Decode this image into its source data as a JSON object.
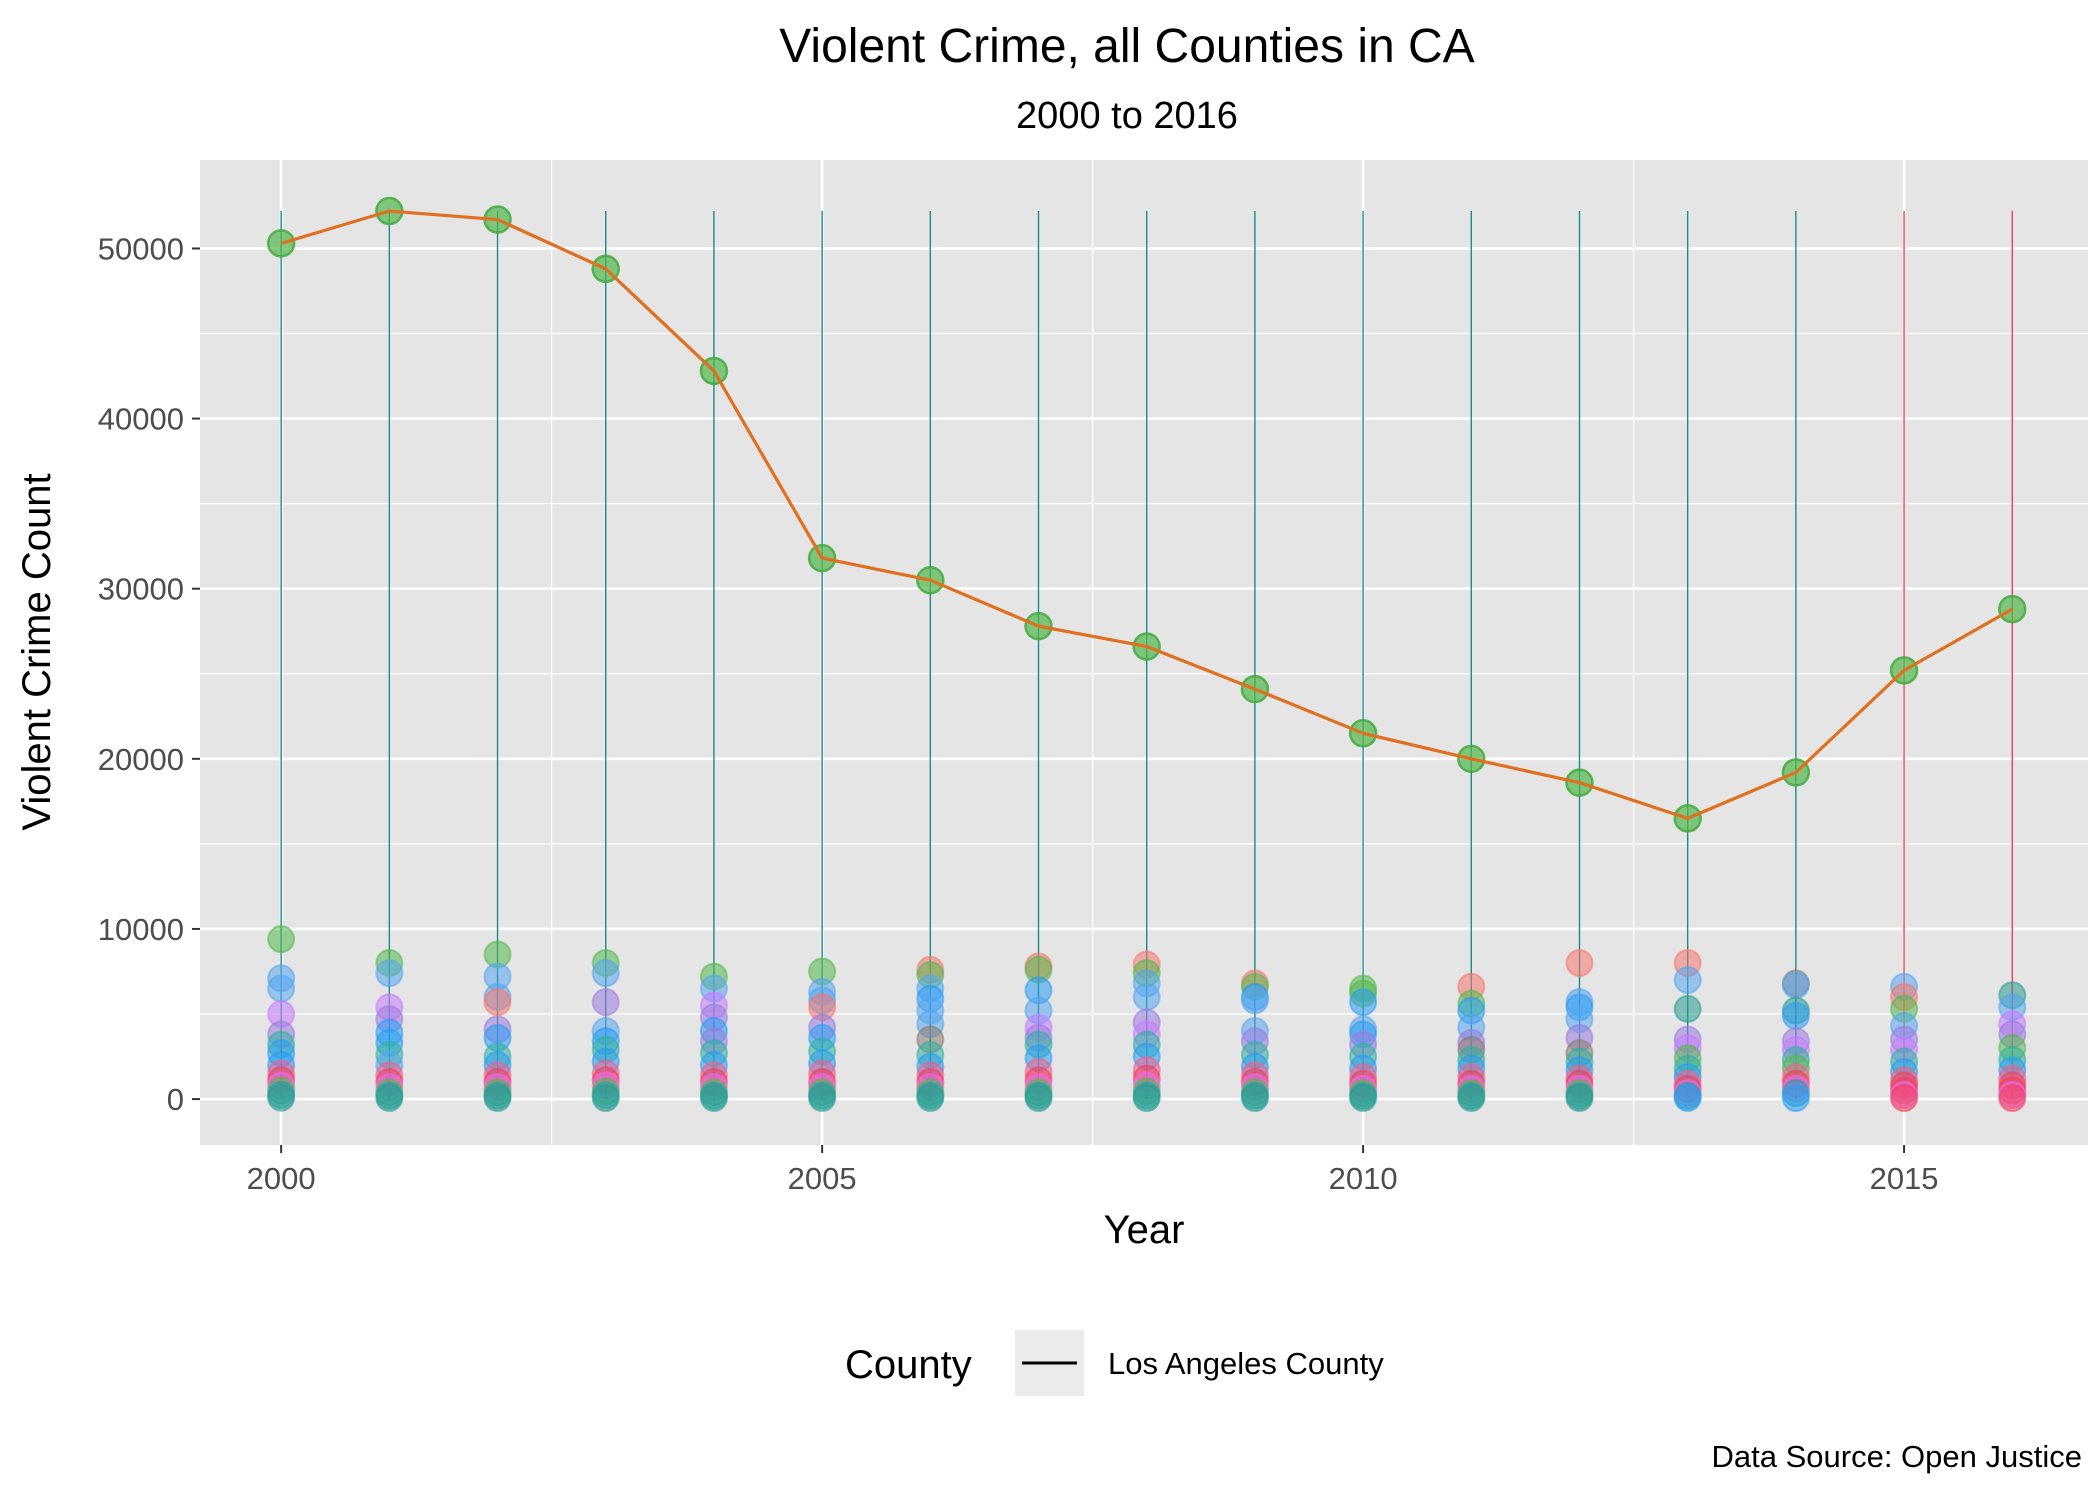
{
  "colors": {
    "panel_background": "#e5e5e5",
    "grid": "#ffffff",
    "highlight_line": "#e07020",
    "highlight_points": "#53b84d",
    "drop_lines_teal": "#1a8c8c",
    "drop_lines_red": "#f0405a"
  },
  "chart_data": {
    "type": "scatter",
    "title": "Violent Crime, all Counties in CA",
    "subtitle": "2000 to 2016",
    "xlabel": "Year",
    "ylabel": "Violent Crime Count",
    "caption": "Data Source: Open Justice",
    "xlim": [
      1999.25,
      2016.7
    ],
    "ylim": [
      -2700,
      55200
    ],
    "x_ticks": [
      2000,
      2005,
      2010,
      2015
    ],
    "y_ticks": [
      0,
      10000,
      20000,
      30000,
      40000,
      50000
    ],
    "x_tick_labels": [
      "2000",
      "2005",
      "2010",
      "2015"
    ],
    "y_tick_labels": [
      "0",
      "10000",
      "20000",
      "30000",
      "40000",
      "50000"
    ],
    "grid": true,
    "legend": {
      "title": "County",
      "position": "bottom",
      "entries": [
        {
          "label": "Los Angeles County",
          "symbol": "line"
        }
      ]
    },
    "drop_lines": {
      "top_value": 52200,
      "years": [
        2000,
        2001,
        2002,
        2003,
        2004,
        2005,
        2006,
        2007,
        2008,
        2009,
        2010,
        2011,
        2012,
        2013,
        2014,
        2015,
        2016
      ],
      "colors": [
        "#1a8c8c",
        "#1a8c8c",
        "#1a8c8c",
        "#1a8c8c",
        "#1a8c8c",
        "#1a8c8c",
        "#1a8c8c",
        "#1a8c8c",
        "#1a8c8c",
        "#1a8c8c",
        "#1a8c8c",
        "#1a8c8c",
        "#1a8c8c",
        "#1a8c8c",
        "#1a8c8c",
        "#f0405a",
        "#f0405a"
      ]
    },
    "highlight_series": {
      "name": "Los Angeles County",
      "x": [
        2000,
        2001,
        2002,
        2003,
        2004,
        2005,
        2006,
        2007,
        2008,
        2009,
        2010,
        2011,
        2012,
        2013,
        2014,
        2015,
        2016
      ],
      "y": [
        50300,
        52200,
        51700,
        48800,
        42800,
        31800,
        30500,
        27800,
        26600,
        24100,
        21500,
        20000,
        18600,
        16500,
        19200,
        25200,
        28800
      ]
    },
    "other_counties": {
      "x": [
        2000,
        2001,
        2002,
        2003,
        2004,
        2005,
        2006,
        2007,
        2008,
        2009,
        2010,
        2011,
        2012,
        2013,
        2014,
        2015,
        2016
      ],
      "points": [
        [
          [
            9400,
            "#53b84d"
          ],
          [
            7100,
            "#56a5f0"
          ],
          [
            6500,
            "#56a5f0"
          ],
          [
            5000,
            "#c77cff"
          ],
          [
            3800,
            "#9a7be0"
          ],
          [
            3200,
            "#2fb0a0"
          ],
          [
            2700,
            "#2a9df4"
          ],
          [
            2000,
            "#2a9df4"
          ],
          [
            1500,
            "#f06090"
          ],
          [
            1100,
            "#f0405a"
          ],
          [
            800,
            "#e76bf3"
          ],
          [
            500,
            "#53b84d"
          ],
          [
            250,
            "#1fa0b0"
          ],
          [
            80,
            "#2a9d8f"
          ]
        ],
        [
          [
            8000,
            "#53b84d"
          ],
          [
            7400,
            "#56a5f0"
          ],
          [
            5400,
            "#c77cff"
          ],
          [
            4700,
            "#9a7be0"
          ],
          [
            3900,
            "#2a9df4"
          ],
          [
            3300,
            "#2a9df4"
          ],
          [
            2600,
            "#2fb0a0"
          ],
          [
            2000,
            "#56a5f0"
          ],
          [
            1400,
            "#f06090"
          ],
          [
            1000,
            "#f0405a"
          ],
          [
            700,
            "#e76bf3"
          ],
          [
            400,
            "#53b84d"
          ],
          [
            200,
            "#1fa0b0"
          ],
          [
            60,
            "#2a9d8f"
          ]
        ],
        [
          [
            8500,
            "#53b84d"
          ],
          [
            7200,
            "#56a5f0"
          ],
          [
            6000,
            "#56a5f0"
          ],
          [
            5700,
            "#f8766d"
          ],
          [
            4100,
            "#9a7be0"
          ],
          [
            3600,
            "#2a9df4"
          ],
          [
            2500,
            "#2fb0a0"
          ],
          [
            2000,
            "#2a9df4"
          ],
          [
            1400,
            "#f06090"
          ],
          [
            1000,
            "#f0405a"
          ],
          [
            700,
            "#e76bf3"
          ],
          [
            400,
            "#53b84d"
          ],
          [
            200,
            "#1fa0b0"
          ],
          [
            60,
            "#2a9d8f"
          ]
        ],
        [
          [
            8000,
            "#53b84d"
          ],
          [
            7400,
            "#56a5f0"
          ],
          [
            5700,
            "#9a7be0"
          ],
          [
            4000,
            "#56a5f0"
          ],
          [
            3400,
            "#2a9df4"
          ],
          [
            2900,
            "#2fb0a0"
          ],
          [
            2200,
            "#2a9df4"
          ],
          [
            1500,
            "#f06090"
          ],
          [
            1100,
            "#f0405a"
          ],
          [
            800,
            "#e76bf3"
          ],
          [
            450,
            "#53b84d"
          ],
          [
            220,
            "#1fa0b0"
          ],
          [
            60,
            "#2a9d8f"
          ]
        ],
        [
          [
            7200,
            "#53b84d"
          ],
          [
            6500,
            "#56a5f0"
          ],
          [
            5500,
            "#c77cff"
          ],
          [
            4800,
            "#9a7be0"
          ],
          [
            4000,
            "#2a9df4"
          ],
          [
            3400,
            "#9a7be0"
          ],
          [
            2700,
            "#2fb0a0"
          ],
          [
            2000,
            "#2a9df4"
          ],
          [
            1400,
            "#f06090"
          ],
          [
            1000,
            "#f0405a"
          ],
          [
            700,
            "#e76bf3"
          ],
          [
            400,
            "#53b84d"
          ],
          [
            200,
            "#1fa0b0"
          ],
          [
            60,
            "#2a9d8f"
          ]
        ],
        [
          [
            7500,
            "#53b84d"
          ],
          [
            6300,
            "#56a5f0"
          ],
          [
            5800,
            "#56a5f0"
          ],
          [
            5400,
            "#f8766d"
          ],
          [
            4200,
            "#9a7be0"
          ],
          [
            3600,
            "#2a9df4"
          ],
          [
            2800,
            "#2fb0a0"
          ],
          [
            2100,
            "#2a9df4"
          ],
          [
            1500,
            "#f06090"
          ],
          [
            1000,
            "#f0405a"
          ],
          [
            700,
            "#e76bf3"
          ],
          [
            400,
            "#53b84d"
          ],
          [
            200,
            "#1fa0b0"
          ],
          [
            60,
            "#2a9d8f"
          ]
        ],
        [
          [
            7600,
            "#f8766d"
          ],
          [
            7300,
            "#53b84d"
          ],
          [
            6500,
            "#56a5f0"
          ],
          [
            5900,
            "#2a9df4"
          ],
          [
            5200,
            "#56a5f0"
          ],
          [
            4400,
            "#56a5f0"
          ],
          [
            3500,
            "#8c7b70"
          ],
          [
            2600,
            "#2fb0a0"
          ],
          [
            1900,
            "#2a9df4"
          ],
          [
            1400,
            "#f06090"
          ],
          [
            1000,
            "#f0405a"
          ],
          [
            700,
            "#e76bf3"
          ],
          [
            400,
            "#53b84d"
          ],
          [
            200,
            "#1fa0b0"
          ],
          [
            60,
            "#2a9d8f"
          ]
        ],
        [
          [
            7800,
            "#f8766d"
          ],
          [
            7600,
            "#53b84d"
          ],
          [
            6400,
            "#2a9df4"
          ],
          [
            5200,
            "#56a5f0"
          ],
          [
            4200,
            "#c77cff"
          ],
          [
            3600,
            "#9a7be0"
          ],
          [
            3200,
            "#2fb0a0"
          ],
          [
            2400,
            "#2a9df4"
          ],
          [
            1600,
            "#f06090"
          ],
          [
            1100,
            "#f0405a"
          ],
          [
            700,
            "#e76bf3"
          ],
          [
            400,
            "#53b84d"
          ],
          [
            200,
            "#1fa0b0"
          ],
          [
            60,
            "#2a9d8f"
          ]
        ],
        [
          [
            7900,
            "#f8766d"
          ],
          [
            7400,
            "#53b84d"
          ],
          [
            6800,
            "#56a5f0"
          ],
          [
            6000,
            "#56a5f0"
          ],
          [
            4500,
            "#9a7be0"
          ],
          [
            3800,
            "#c77cff"
          ],
          [
            3200,
            "#2fb0a0"
          ],
          [
            2500,
            "#2a9df4"
          ],
          [
            1700,
            "#f06090"
          ],
          [
            1200,
            "#f0405a"
          ],
          [
            800,
            "#e76bf3"
          ],
          [
            450,
            "#53b84d"
          ],
          [
            200,
            "#1fa0b0"
          ],
          [
            60,
            "#2a9d8f"
          ]
        ],
        [
          [
            6800,
            "#f8766d"
          ],
          [
            6600,
            "#53b84d"
          ],
          [
            6000,
            "#2a9df4"
          ],
          [
            5800,
            "#56a5f0"
          ],
          [
            4000,
            "#56a5f0"
          ],
          [
            3400,
            "#9a7be0"
          ],
          [
            2600,
            "#2fb0a0"
          ],
          [
            1900,
            "#2a9df4"
          ],
          [
            1400,
            "#f06090"
          ],
          [
            1000,
            "#f0405a"
          ],
          [
            700,
            "#e76bf3"
          ],
          [
            400,
            "#53b84d"
          ],
          [
            200,
            "#1fa0b0"
          ],
          [
            60,
            "#2a9d8f"
          ]
        ],
        [
          [
            6500,
            "#53b84d"
          ],
          [
            6200,
            "#53b84d"
          ],
          [
            5700,
            "#2a9df4"
          ],
          [
            4100,
            "#56a5f0"
          ],
          [
            3800,
            "#2a9df4"
          ],
          [
            3200,
            "#9a7be0"
          ],
          [
            2500,
            "#2fb0a0"
          ],
          [
            1800,
            "#2a9df4"
          ],
          [
            1300,
            "#f06090"
          ],
          [
            900,
            "#f0405a"
          ],
          [
            600,
            "#e76bf3"
          ],
          [
            350,
            "#53b84d"
          ],
          [
            180,
            "#1fa0b0"
          ],
          [
            60,
            "#2a9d8f"
          ]
        ],
        [
          [
            6600,
            "#f8766d"
          ],
          [
            5600,
            "#53b84d"
          ],
          [
            5200,
            "#2a9df4"
          ],
          [
            4200,
            "#56a5f0"
          ],
          [
            3300,
            "#9a7be0"
          ],
          [
            2900,
            "#8c7b70"
          ],
          [
            2300,
            "#2fb0a0"
          ],
          [
            1800,
            "#2a9df4"
          ],
          [
            1300,
            "#f06090"
          ],
          [
            900,
            "#f0405a"
          ],
          [
            600,
            "#e76bf3"
          ],
          [
            350,
            "#53b84d"
          ],
          [
            180,
            "#1fa0b0"
          ],
          [
            60,
            "#2a9d8f"
          ]
        ],
        [
          [
            8000,
            "#f8766d"
          ],
          [
            5700,
            "#56a5f0"
          ],
          [
            5400,
            "#2a9df4"
          ],
          [
            4700,
            "#56a5f0"
          ],
          [
            3600,
            "#9a7be0"
          ],
          [
            2700,
            "#8c7b70"
          ],
          [
            2200,
            "#2fb0a0"
          ],
          [
            1700,
            "#2a9df4"
          ],
          [
            1200,
            "#f06090"
          ],
          [
            900,
            "#f0405a"
          ],
          [
            600,
            "#e76bf3"
          ],
          [
            350,
            "#53b84d"
          ],
          [
            180,
            "#1fa0b0"
          ],
          [
            60,
            "#2a9d8f"
          ]
        ],
        [
          [
            8000,
            "#f8766d"
          ],
          [
            7000,
            "#56a5f0"
          ],
          [
            5300,
            "#2a9d8f"
          ],
          [
            3500,
            "#9a7be0"
          ],
          [
            3000,
            "#c77cff"
          ],
          [
            2400,
            "#53b84d"
          ],
          [
            1800,
            "#2fb0a0"
          ],
          [
            1300,
            "#2a9df4"
          ],
          [
            900,
            "#f06090"
          ],
          [
            600,
            "#f0405a"
          ],
          [
            350,
            "#e76bf3"
          ],
          [
            180,
            "#1fa0b0"
          ],
          [
            60,
            "#2a9df4"
          ]
        ],
        [
          [
            6800,
            "#8c7b70"
          ],
          [
            6700,
            "#56a5f0"
          ],
          [
            5200,
            "#2a9d8f"
          ],
          [
            4900,
            "#2a9df4"
          ],
          [
            3400,
            "#9a7be0"
          ],
          [
            2900,
            "#c77cff"
          ],
          [
            2300,
            "#2fb0a0"
          ],
          [
            1800,
            "#53b84d"
          ],
          [
            1300,
            "#f06090"
          ],
          [
            900,
            "#f0405a"
          ],
          [
            600,
            "#e76bf3"
          ],
          [
            350,
            "#1fa0b0"
          ],
          [
            60,
            "#2a9df4"
          ]
        ],
        [
          [
            6600,
            "#56a5f0"
          ],
          [
            6000,
            "#f8766d"
          ],
          [
            5300,
            "#53b84d"
          ],
          [
            4300,
            "#56a5f0"
          ],
          [
            3500,
            "#9a7be0"
          ],
          [
            2900,
            "#c77cff"
          ],
          [
            2200,
            "#2fb0a0"
          ],
          [
            1600,
            "#2a9df4"
          ],
          [
            1100,
            "#f06090"
          ],
          [
            800,
            "#f0405a"
          ],
          [
            500,
            "#f0405a"
          ],
          [
            250,
            "#e76bf3"
          ],
          [
            60,
            "#f0405a"
          ]
        ],
        [
          [
            6100,
            "#2a9d8f"
          ],
          [
            5400,
            "#56a5f0"
          ],
          [
            4400,
            "#c77cff"
          ],
          [
            3800,
            "#9a7be0"
          ],
          [
            3000,
            "#53b84d"
          ],
          [
            2300,
            "#2fb0a0"
          ],
          [
            1700,
            "#2a9df4"
          ],
          [
            1200,
            "#f06090"
          ],
          [
            800,
            "#f0405a"
          ],
          [
            500,
            "#f0405a"
          ],
          [
            250,
            "#e76bf3"
          ],
          [
            60,
            "#f0405a"
          ]
        ]
      ]
    }
  }
}
